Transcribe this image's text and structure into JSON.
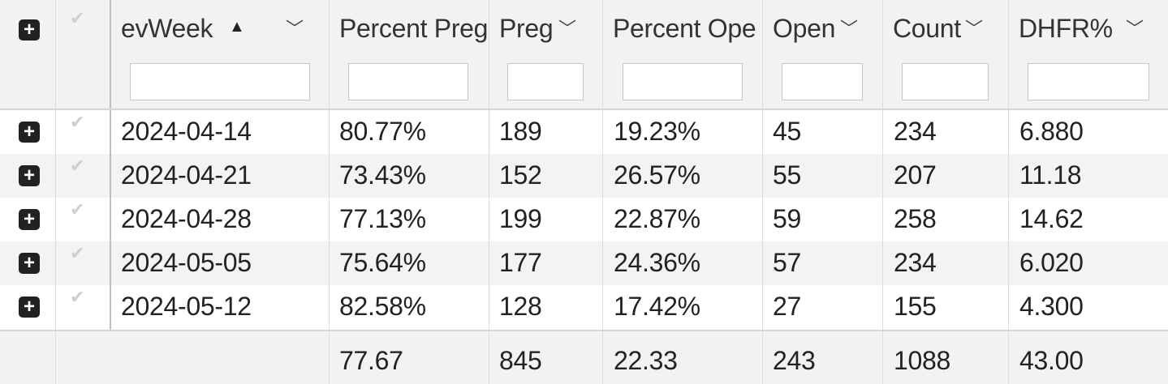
{
  "grid": {
    "header": {
      "expand_icon": "+",
      "check_icon": "✔",
      "columns": [
        {
          "key": "evWeek",
          "label": "evWeek",
          "filter_value": "",
          "sort": "▲",
          "menu": "﹀"
        },
        {
          "key": "pct_preg",
          "label": "Percent Preg",
          "filter_value": "",
          "menu": ""
        },
        {
          "key": "preg",
          "label": "Preg",
          "filter_value": "",
          "menu": "﹀"
        },
        {
          "key": "pct_open",
          "label": "Percent Ope",
          "filter_value": "",
          "menu": ""
        },
        {
          "key": "open",
          "label": "Open",
          "filter_value": "",
          "menu": "﹀"
        },
        {
          "key": "count",
          "label": "Count",
          "filter_value": "",
          "menu": "﹀"
        },
        {
          "key": "dhfr",
          "label": "DHFR%",
          "filter_value": "",
          "menu": "﹀"
        }
      ]
    },
    "rows": [
      {
        "expand": "+",
        "check": "✔",
        "evWeek": "2024-04-14",
        "pct_preg": "80.77%",
        "preg": "189",
        "pct_open": "19.23%",
        "open": "45",
        "count": "234",
        "dhfr": "6.880"
      },
      {
        "expand": "+",
        "check": "✔",
        "evWeek": "2024-04-21",
        "pct_preg": "73.43%",
        "preg": "152",
        "pct_open": "26.57%",
        "open": "55",
        "count": "207",
        "dhfr": "11.18"
      },
      {
        "expand": "+",
        "check": "✔",
        "evWeek": "2024-04-28",
        "pct_preg": "77.13%",
        "preg": "199",
        "pct_open": "22.87%",
        "open": "59",
        "count": "258",
        "dhfr": "14.62"
      },
      {
        "expand": "+",
        "check": "✔",
        "evWeek": "2024-05-05",
        "pct_preg": "75.64%",
        "preg": "177",
        "pct_open": "24.36%",
        "open": "57",
        "count": "234",
        "dhfr": "6.020"
      },
      {
        "expand": "+",
        "check": "✔",
        "evWeek": "2024-05-12",
        "pct_preg": "82.58%",
        "preg": "128",
        "pct_open": "17.42%",
        "open": "27",
        "count": "155",
        "dhfr": "4.300"
      }
    ],
    "footer": {
      "pct_preg": "77.67",
      "preg": "845",
      "pct_open": "22.33",
      "open": "243",
      "count": "1088",
      "dhfr": "43.00"
    }
  }
}
